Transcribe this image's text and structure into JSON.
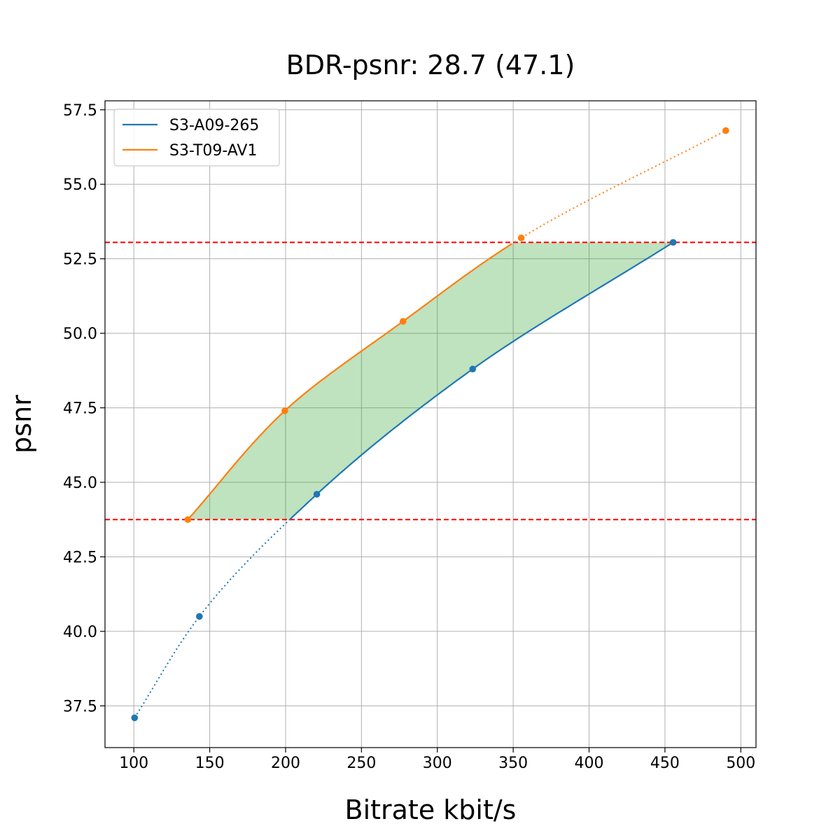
{
  "chart_data": {
    "type": "line",
    "title": "BDR-psnr: 28.7 (47.1)",
    "xlabel": "Bitrate kbit/s",
    "ylabel": "psnr",
    "xlim": [
      81,
      510
    ],
    "ylim": [
      36.1,
      57.8
    ],
    "xticks": [
      "100",
      "150",
      "200",
      "250",
      "300",
      "350",
      "400",
      "450",
      "500"
    ],
    "yticks": [
      "37.5",
      "40.0",
      "42.5",
      "45.0",
      "47.5",
      "50.0",
      "52.5",
      "55.0",
      "57.5"
    ],
    "grid": true,
    "legend_position": "top-left",
    "threshold_lines": [
      43.75,
      53.05
    ],
    "threshold_color": "#ff0000",
    "fill_color": "#2ca02c",
    "series": [
      {
        "name": "S3-A09-265",
        "color": "#1f77b4",
        "x": [
          100.5,
          143.2,
          220.6,
          323.3,
          455.4
        ],
        "y": [
          37.1,
          40.5,
          44.6,
          48.8,
          53.05
        ],
        "solid_range": [
          203,
          455.4
        ]
      },
      {
        "name": "S3-T09-AV1",
        "color": "#ff7f0e",
        "x": [
          135.6,
          199.5,
          277.4,
          355.3,
          490.1
        ],
        "y": [
          43.75,
          47.4,
          50.4,
          53.2,
          56.8
        ],
        "solid_range": [
          135.6,
          350
        ]
      }
    ]
  }
}
